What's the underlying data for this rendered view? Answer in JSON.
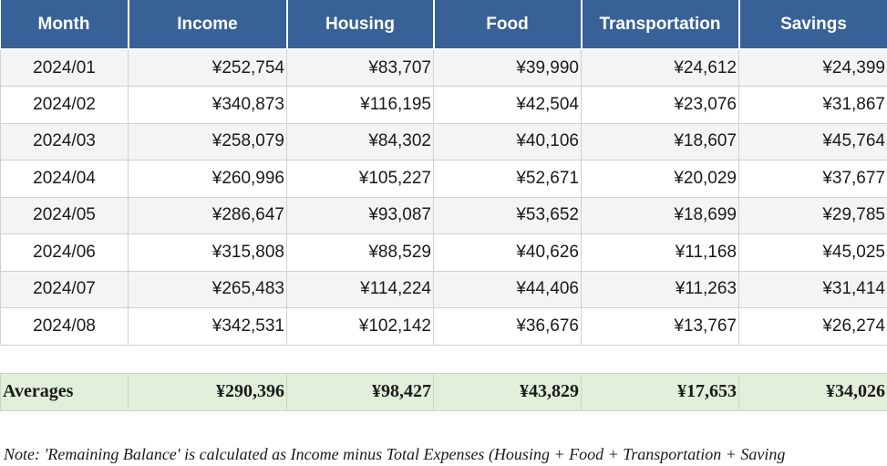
{
  "table": {
    "headers": [
      "Month",
      "Income",
      "Housing",
      "Food",
      "Transportation",
      "Savings"
    ],
    "rows": [
      [
        "2024/01",
        "¥252,754",
        "¥83,707",
        "¥39,990",
        "¥24,612",
        "¥24,399"
      ],
      [
        "2024/02",
        "¥340,873",
        "¥116,195",
        "¥42,504",
        "¥23,076",
        "¥31,867"
      ],
      [
        "2024/03",
        "¥258,079",
        "¥84,302",
        "¥40,106",
        "¥18,607",
        "¥45,764"
      ],
      [
        "2024/04",
        "¥260,996",
        "¥105,227",
        "¥52,671",
        "¥20,029",
        "¥37,677"
      ],
      [
        "2024/05",
        "¥286,647",
        "¥93,087",
        "¥53,652",
        "¥18,699",
        "¥29,785"
      ],
      [
        "2024/06",
        "¥315,808",
        "¥88,529",
        "¥40,626",
        "¥11,168",
        "¥45,025"
      ],
      [
        "2024/07",
        "¥265,483",
        "¥114,224",
        "¥44,406",
        "¥11,263",
        "¥31,414"
      ],
      [
        "2024/08",
        "¥342,531",
        "¥102,142",
        "¥36,676",
        "¥13,767",
        "¥26,274"
      ]
    ],
    "averages": [
      "Averages",
      "¥290,396",
      "¥98,427",
      "¥43,829",
      "¥17,653",
      "¥34,026"
    ]
  },
  "note": "Note: 'Remaining Balance' is calculated as Income minus Total Expenses (Housing + Food + Transportation + Saving",
  "colors": {
    "header_bg": "#386197",
    "averages_bg": "#e2efda",
    "zebra_row": "#f4f4f4"
  }
}
